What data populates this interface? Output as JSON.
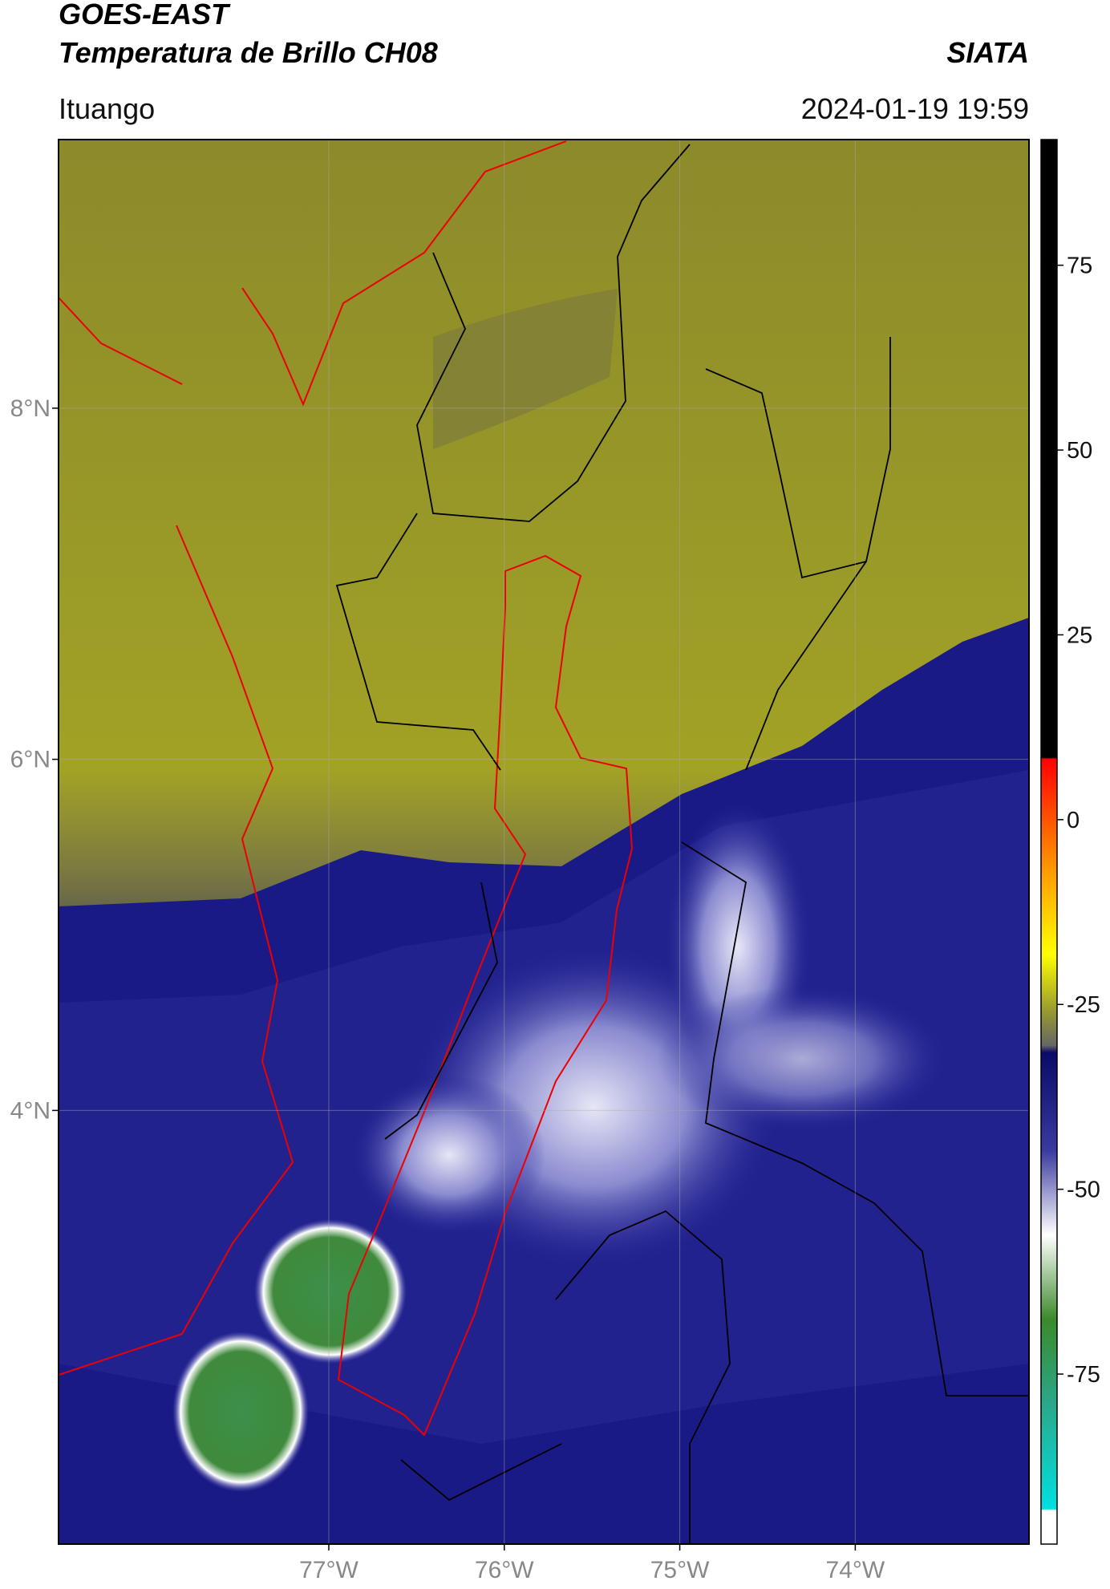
{
  "header": {
    "title": "GOES-EAST",
    "subtitle": "Temperatura de Brillo CH08",
    "source": "SIATA",
    "region": "Ituango",
    "datetime": "2024-01-19 19:59"
  },
  "map": {
    "xlim": [
      -78.54,
      -73.01
    ],
    "ylim": [
      1.53,
      9.53
    ],
    "xticks": [
      {
        "value": -77,
        "label": "77°W"
      },
      {
        "value": -76,
        "label": "76°W"
      },
      {
        "value": -75,
        "label": "75°W"
      },
      {
        "value": -74,
        "label": "74°W"
      }
    ],
    "yticks": [
      {
        "value": 8,
        "label": "8°N"
      },
      {
        "value": 6,
        "label": "6°N"
      },
      {
        "value": 4,
        "label": "4°N"
      }
    ],
    "grid": true
  },
  "colorbar": {
    "lim": [
      -98,
      92
    ],
    "ticks": [
      75,
      50,
      25,
      0,
      -25,
      -50,
      -75
    ]
  }
}
